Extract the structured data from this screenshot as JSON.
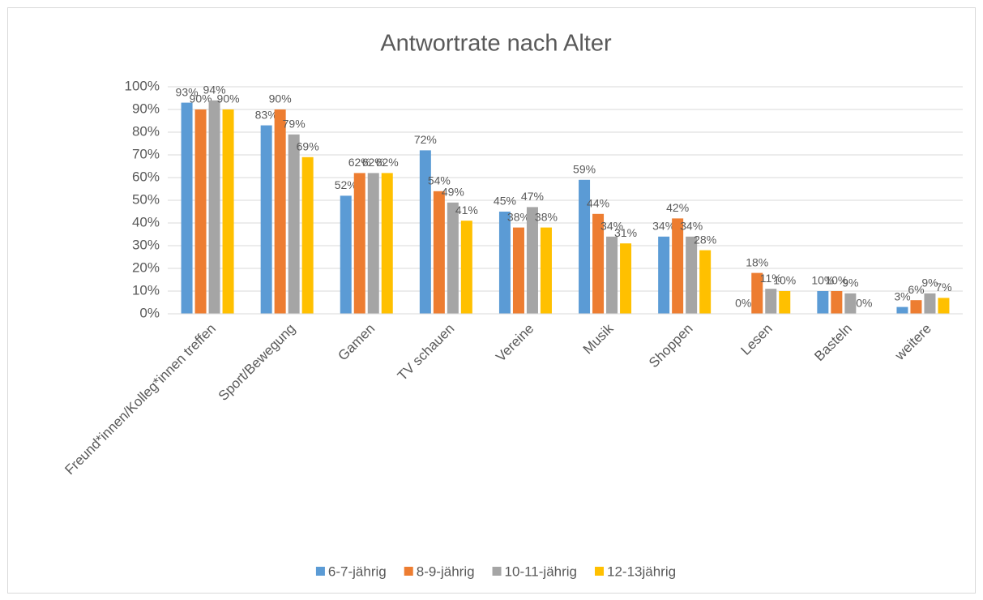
{
  "chart_data": {
    "type": "bar",
    "title": "Antwortrate nach Alter",
    "categories": [
      "Freund*innen/Kolleg*innen treffen",
      "Sport/Bewegung",
      "Gamen",
      "TV schauen",
      "Vereine",
      "Musik",
      "Shoppen",
      "Lesen",
      "Basteln",
      "weitere"
    ],
    "series": [
      {
        "name": "6-7-jährig",
        "color": "#5b9bd5",
        "values": [
          93,
          83,
          52,
          72,
          45,
          59,
          34,
          0,
          10,
          3
        ],
        "value_labels": [
          "93%",
          "83%",
          "52%",
          "72%",
          "45%",
          "59%",
          "34%",
          "0%",
          "10%",
          "3%"
        ]
      },
      {
        "name": "8-9-jährig",
        "color": "#ed7d31",
        "values": [
          90,
          90,
          62,
          54,
          38,
          44,
          42,
          18,
          10,
          6
        ],
        "value_labels": [
          "90%",
          "90%",
          "62%",
          "54%",
          "38%",
          "44%",
          "42%",
          "18%",
          "10%",
          "6%"
        ]
      },
      {
        "name": "10-11-jährig",
        "color": "#a5a5a5",
        "values": [
          94,
          79,
          62,
          49,
          47,
          34,
          34,
          11,
          9,
          9
        ],
        "value_labels": [
          "94%",
          "79%",
          "62%",
          "49%",
          "47%",
          "34%",
          "34%",
          "11%",
          "9%",
          "9%"
        ]
      },
      {
        "name": "12-13jährig",
        "color": "#ffc000",
        "values": [
          90,
          69,
          62,
          41,
          38,
          31,
          28,
          10,
          0,
          7
        ],
        "value_labels": [
          "90%",
          "69%",
          "62%",
          "41%",
          "38%",
          "31%",
          "28%",
          "10%",
          "0%",
          "7%"
        ]
      }
    ],
    "ylim": [
      0,
      100
    ],
    "yticks": [
      {
        "value": 0,
        "label": "0%"
      },
      {
        "value": 10,
        "label": "10%"
      },
      {
        "value": 20,
        "label": "20%"
      },
      {
        "value": 30,
        "label": "30%"
      },
      {
        "value": 40,
        "label": "40%"
      },
      {
        "value": 50,
        "label": "50%"
      },
      {
        "value": 60,
        "label": "60%"
      },
      {
        "value": 70,
        "label": "70%"
      },
      {
        "value": 80,
        "label": "80%"
      },
      {
        "value": 90,
        "label": "90%"
      },
      {
        "value": 100,
        "label": "100%"
      }
    ],
    "grid": true,
    "legend": "bottom"
  }
}
